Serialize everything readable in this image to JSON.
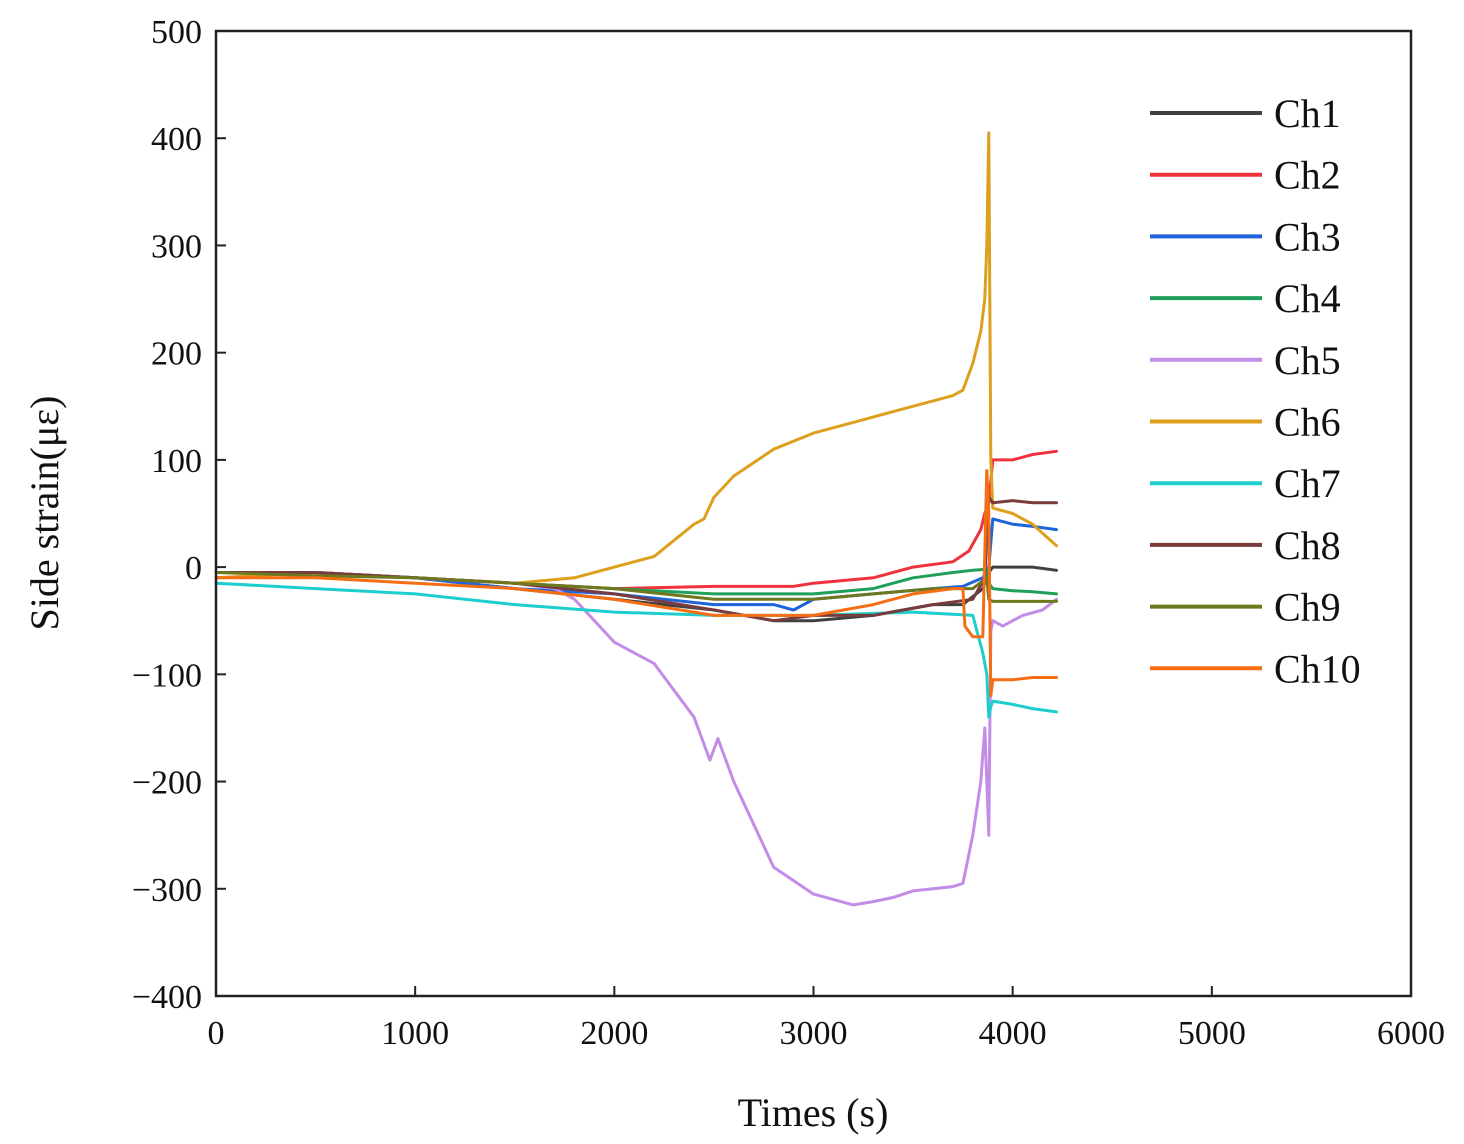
{
  "chart_data": {
    "type": "line",
    "title": "",
    "xlabel": "Times (s)",
    "ylabel": "Side strain(με)",
    "xlim": [
      0,
      6000
    ],
    "ylim": [
      -400,
      500
    ],
    "xticks": [
      0,
      1000,
      2000,
      3000,
      4000,
      5000,
      6000
    ],
    "yticks": [
      500,
      400,
      300,
      200,
      100,
      0,
      -100,
      -200,
      -300,
      -400
    ],
    "xtick_labels": [
      "0",
      "1000",
      "2000",
      "3000",
      "4000",
      "5000",
      "6000"
    ],
    "ytick_labels": [
      "500",
      "400",
      "300",
      "200",
      "100",
      "0",
      "−100",
      "−200",
      "−300",
      "−400"
    ],
    "grid": false,
    "legend_position": "right",
    "series": [
      {
        "name": "Ch1",
        "color": "#404040",
        "x": [
          0,
          500,
          1000,
          1500,
          2000,
          2500,
          2800,
          3000,
          3300,
          3600,
          3750,
          3850,
          3880,
          3900,
          4000,
          4100,
          4220
        ],
        "y": [
          -5,
          -5,
          -10,
          -20,
          -30,
          -40,
          -50,
          -50,
          -45,
          -35,
          -35,
          -20,
          -5,
          0,
          0,
          0,
          -3
        ]
      },
      {
        "name": "Ch2",
        "color": "#f0323c",
        "x": [
          0,
          500,
          1000,
          1500,
          1800,
          2000,
          2500,
          2900,
          3000,
          3300,
          3500,
          3700,
          3780,
          3840,
          3860,
          3880,
          3900,
          4000,
          4100,
          4220
        ],
        "y": [
          -5,
          -5,
          -10,
          -15,
          -18,
          -20,
          -18,
          -18,
          -15,
          -10,
          0,
          5,
          15,
          35,
          50,
          60,
          100,
          100,
          105,
          108
        ]
      },
      {
        "name": "Ch3",
        "color": "#1e64dc",
        "x": [
          0,
          500,
          1000,
          1500,
          2000,
          2500,
          2800,
          2900,
          3000,
          3300,
          3600,
          3750,
          3850,
          3880,
          3900,
          4000,
          4100,
          4220
        ],
        "y": [
          -5,
          -5,
          -10,
          -20,
          -25,
          -35,
          -35,
          -40,
          -30,
          -25,
          -20,
          -18,
          -10,
          0,
          45,
          40,
          38,
          35
        ]
      },
      {
        "name": "Ch4",
        "color": "#1ea05a",
        "x": [
          0,
          500,
          1000,
          1500,
          2000,
          2500,
          3000,
          3300,
          3500,
          3700,
          3800,
          3870,
          3880,
          3900,
          4000,
          4100,
          4220
        ],
        "y": [
          -5,
          -5,
          -10,
          -15,
          -20,
          -25,
          -25,
          -20,
          -10,
          -5,
          -3,
          -2,
          -15,
          -20,
          -22,
          -23,
          -25
        ]
      },
      {
        "name": "Ch5",
        "color": "#c38ce6",
        "x": [
          0,
          500,
          1000,
          1500,
          1700,
          1800,
          1900,
          2000,
          2200,
          2400,
          2480,
          2520,
          2600,
          2800,
          3000,
          3200,
          3300,
          3400,
          3500,
          3700,
          3750,
          3800,
          3840,
          3860,
          3880,
          3890,
          3900,
          3950,
          4050,
          4150,
          4220
        ],
        "y": [
          -5,
          -5,
          -10,
          -15,
          -20,
          -30,
          -50,
          -70,
          -90,
          -140,
          -180,
          -160,
          -200,
          -280,
          -305,
          -315,
          -312,
          -308,
          -302,
          -298,
          -295,
          -250,
          -200,
          -150,
          -250,
          -60,
          -50,
          -55,
          -45,
          -40,
          -30
        ]
      },
      {
        "name": "Ch6",
        "color": "#dca01e",
        "x": [
          0,
          500,
          1000,
          1500,
          1800,
          2000,
          2200,
          2400,
          2450,
          2500,
          2600,
          2800,
          3000,
          3200,
          3400,
          3600,
          3700,
          3750,
          3800,
          3840,
          3860,
          3870,
          3880,
          3890,
          3900,
          4000,
          4100,
          4220
        ],
        "y": [
          -10,
          -5,
          -10,
          -15,
          -10,
          0,
          10,
          40,
          45,
          65,
          85,
          110,
          125,
          135,
          145,
          155,
          160,
          165,
          190,
          220,
          250,
          300,
          405,
          100,
          55,
          50,
          40,
          20
        ]
      },
      {
        "name": "Ch7",
        "color": "#1ecdcd",
        "x": [
          0,
          500,
          1000,
          1500,
          2000,
          2500,
          3000,
          3500,
          3800,
          3850,
          3870,
          3880,
          3890,
          3900,
          4000,
          4100,
          4220
        ],
        "y": [
          -15,
          -20,
          -25,
          -35,
          -42,
          -45,
          -45,
          -42,
          -45,
          -80,
          -100,
          -140,
          -130,
          -125,
          -128,
          -132,
          -135
        ]
      },
      {
        "name": "Ch8",
        "color": "#783c3c",
        "x": [
          0,
          500,
          1000,
          1500,
          2000,
          2500,
          2800,
          3000,
          3300,
          3600,
          3800,
          3860,
          3880,
          3900,
          4000,
          4100,
          4220
        ],
        "y": [
          -5,
          -5,
          -10,
          -15,
          -25,
          -40,
          -50,
          -45,
          -45,
          -35,
          -30,
          -10,
          65,
          60,
          62,
          60,
          60
        ]
      },
      {
        "name": "Ch9",
        "color": "#6e781e",
        "x": [
          0,
          500,
          1000,
          1500,
          2000,
          2500,
          3000,
          3300,
          3600,
          3800,
          3870,
          3880,
          3900,
          4000,
          4100,
          4220
        ],
        "y": [
          -5,
          -8,
          -10,
          -15,
          -20,
          -30,
          -30,
          -25,
          -20,
          -20,
          -10,
          -30,
          -32,
          -32,
          -32,
          -32
        ]
      },
      {
        "name": "Ch10",
        "color": "#f56e14",
        "x": [
          0,
          500,
          1000,
          1500,
          2000,
          2500,
          3000,
          3300,
          3500,
          3700,
          3750,
          3760,
          3800,
          3850,
          3870,
          3880,
          3890,
          3900,
          4000,
          4100,
          4220
        ],
        "y": [
          -10,
          -10,
          -15,
          -20,
          -30,
          -45,
          -45,
          -35,
          -25,
          -20,
          -20,
          -55,
          -65,
          -65,
          90,
          50,
          -120,
          -105,
          -105,
          -103,
          -103
        ]
      }
    ]
  }
}
